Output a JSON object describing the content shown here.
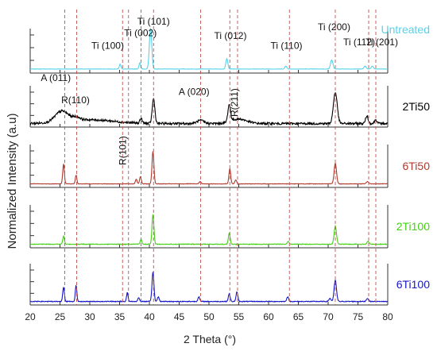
{
  "chart_data": {
    "type": "line",
    "xlabel": "2 Theta (°)",
    "ylabel": "Normalized Intensity (a.u)",
    "xlim": [
      20,
      80
    ],
    "x_ticks": [
      20,
      25,
      30,
      35,
      40,
      45,
      50,
      55,
      60,
      65,
      70,
      75,
      80
    ],
    "reference_lines": [
      {
        "phase": "A",
        "x": [
          25.8,
          48.6
        ]
      },
      {
        "phase": "R",
        "x": [
          27.8,
          36.5,
          54.8
        ]
      },
      {
        "phase": "Ti",
        "x": [
          35.5,
          38.6,
          40.7,
          53.5,
          63.5,
          71.2,
          76.8,
          78.0
        ]
      }
    ],
    "series": [
      {
        "name": "Untreated",
        "color": "#56d3e8",
        "baseline": 0.06,
        "noise": 0.004,
        "peaks": [
          [
            35.1,
            0.12,
            0.14
          ],
          [
            38.4,
            0.15,
            0.14
          ],
          [
            40.2,
            1.0,
            0.2
          ],
          [
            53.0,
            0.25,
            0.17
          ],
          [
            62.9,
            0.07,
            0.17
          ],
          [
            70.6,
            0.22,
            0.2
          ],
          [
            76.2,
            0.07,
            0.18
          ],
          [
            77.4,
            0.07,
            0.18
          ]
        ]
      },
      {
        "name": "2Ti50",
        "color": "#000000",
        "baseline": 0.05,
        "noise": 0.03,
        "hump": [
          [
            25.3,
            0.28,
            1.1
          ],
          [
            27.8,
            0.08,
            0.6
          ],
          [
            30,
            0.1,
            4.0
          ],
          [
            48.6,
            0.08,
            0.6
          ],
          [
            55,
            0.12,
            1.3
          ]
        ],
        "peaks": [
          [
            38.6,
            0.12,
            0.2
          ],
          [
            40.7,
            0.65,
            0.22
          ],
          [
            53.4,
            0.45,
            0.22
          ],
          [
            71.2,
            0.82,
            0.32
          ],
          [
            76.5,
            0.2,
            0.22
          ],
          [
            78.0,
            0.1,
            0.22
          ]
        ]
      },
      {
        "name": "6Ti50",
        "color": "#b03a2e",
        "baseline": 0.05,
        "noise": 0.006,
        "peaks": [
          [
            25.6,
            0.5,
            0.14
          ],
          [
            27.7,
            0.22,
            0.13
          ],
          [
            37.8,
            0.12,
            0.14
          ],
          [
            38.5,
            0.18,
            0.14
          ],
          [
            40.6,
            0.82,
            0.16
          ],
          [
            48.5,
            0.06,
            0.15
          ],
          [
            53.5,
            0.38,
            0.15
          ],
          [
            54.5,
            0.1,
            0.15
          ],
          [
            71.2,
            0.52,
            0.2
          ],
          [
            76.6,
            0.06,
            0.18
          ]
        ]
      },
      {
        "name": "2Ti100",
        "color": "#44d016",
        "baseline": 0.05,
        "noise": 0.008,
        "peaks": [
          [
            25.6,
            0.2,
            0.14
          ],
          [
            38.6,
            0.12,
            0.14
          ],
          [
            40.6,
            0.75,
            0.16
          ],
          [
            53.4,
            0.28,
            0.15
          ],
          [
            63.3,
            0.07,
            0.16
          ],
          [
            71.2,
            0.45,
            0.2
          ],
          [
            76.7,
            0.07,
            0.18
          ]
        ]
      },
      {
        "name": "6Ti100",
        "color": "#1616c8",
        "baseline": 0.05,
        "noise": 0.01,
        "peaks": [
          [
            25.6,
            0.38,
            0.14
          ],
          [
            27.7,
            0.42,
            0.13
          ],
          [
            36.3,
            0.23,
            0.13
          ],
          [
            38.2,
            0.1,
            0.14
          ],
          [
            40.6,
            0.78,
            0.16
          ],
          [
            41.5,
            0.12,
            0.15
          ],
          [
            48.3,
            0.12,
            0.15
          ],
          [
            53.4,
            0.2,
            0.15
          ],
          [
            54.7,
            0.25,
            0.15
          ],
          [
            63.2,
            0.12,
            0.16
          ],
          [
            70.3,
            0.08,
            0.18
          ],
          [
            71.2,
            0.55,
            0.2
          ],
          [
            76.6,
            0.08,
            0.18
          ]
        ]
      }
    ],
    "annotations": [
      {
        "text": "Ti (101)",
        "x": 40.7,
        "panel": 0,
        "level": 0.98
      },
      {
        "text": "Ti (002)",
        "x": 38.5,
        "panel": 0,
        "level": 0.72
      },
      {
        "text": "Ti (100)",
        "x": 33.0,
        "panel": 0,
        "level": 0.44
      },
      {
        "text": "Ti (012)",
        "x": 53.6,
        "panel": 0,
        "level": 0.66
      },
      {
        "text": "Ti (110)",
        "x": 63.0,
        "panel": 0,
        "level": 0.44
      },
      {
        "text": "Ti (200)",
        "x": 71.0,
        "panel": 0,
        "level": 0.86
      },
      {
        "text": "Ti (112)",
        "x": 75.2,
        "panel": 0,
        "level": 0.52
      },
      {
        "text": "Ti (201)",
        "x": 79.0,
        "panel": 0,
        "level": 0.52
      },
      {
        "text": "A (011)",
        "x": 24.3,
        "panel": 1,
        "level": 1.0
      },
      {
        "text": "R(110)",
        "x": 27.6,
        "panel": 1,
        "level": 0.4
      },
      {
        "text": "A (020)",
        "x": 47.5,
        "panel": 1,
        "level": 0.63
      },
      {
        "text": "R(211)",
        "x": 54.8,
        "panel": 1,
        "level": 0.42,
        "rotate": -90
      },
      {
        "text": "R(101)",
        "x": 36.1,
        "panel": 2,
        "level": 0.72,
        "rotate": -90
      }
    ]
  }
}
